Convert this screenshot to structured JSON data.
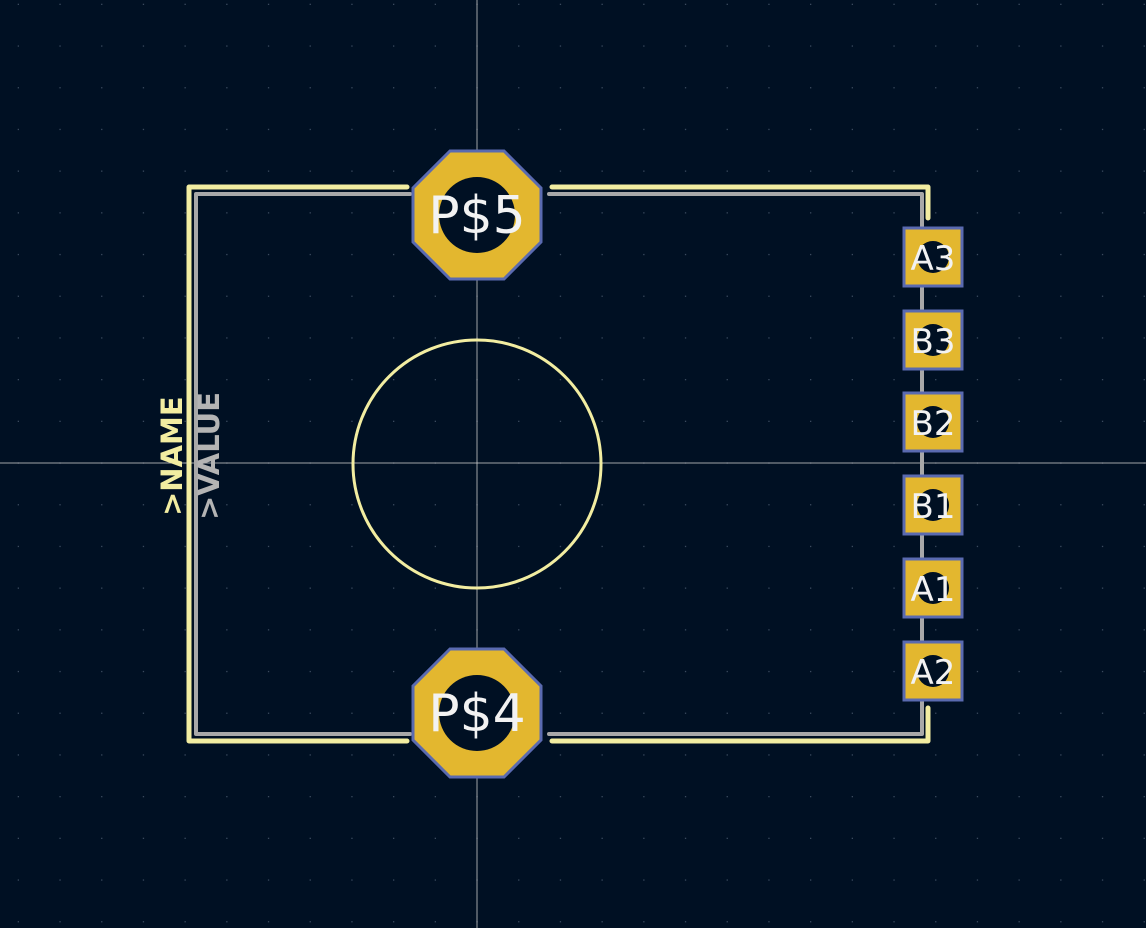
{
  "colors": {
    "background": "#001023",
    "grid_dot": "#3a4a5e",
    "crosshair": "#c8c8c8",
    "silkscreen": "#f2eda1",
    "fab_outline": "#a8a8a8",
    "pad_copper": "#e3b72f",
    "pad_outline": "#5a6ab0",
    "pad_hole": "#001023",
    "pad_text": "#f2f2f2",
    "value_text": "#b4b4b4"
  },
  "texts": {
    "name": ">NAME",
    "value": ">VALUE"
  },
  "mounting_pads": [
    {
      "id": "P$5",
      "label": "P$5"
    },
    {
      "id": "P$4",
      "label": "P$4"
    }
  ],
  "smd_pads": [
    {
      "id": "A3",
      "label": "A3"
    },
    {
      "id": "B3",
      "label": "B3"
    },
    {
      "id": "B2",
      "label": "B2"
    },
    {
      "id": "B1",
      "label": "B1"
    },
    {
      "id": "A1",
      "label": "A1"
    },
    {
      "id": "A2",
      "label": "A2"
    }
  ],
  "icons": {
    "crosshair": "origin-crosshair-icon",
    "circle": "center-circle-icon"
  }
}
